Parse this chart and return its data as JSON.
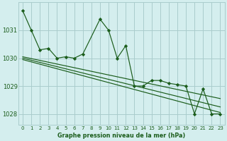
{
  "background_color": "#d4eeee",
  "grid_color": "#aacccc",
  "line_color": "#1a5c1a",
  "title": "Graphe pression niveau de la mer (hPa)",
  "xlim": [
    -0.5,
    23.5
  ],
  "ylim": [
    1027.6,
    1032.0
  ],
  "yticks": [
    1028,
    1029,
    1030,
    1031
  ],
  "xticks": [
    0,
    1,
    2,
    3,
    4,
    5,
    6,
    7,
    8,
    9,
    10,
    11,
    12,
    13,
    14,
    15,
    16,
    17,
    18,
    19,
    20,
    21,
    22,
    23
  ],
  "main_x": [
    0,
    1,
    2,
    3,
    4,
    5,
    6,
    7,
    9,
    10,
    11,
    12,
    13,
    14,
    15,
    16,
    17,
    18,
    19,
    20,
    21,
    22,
    23
  ],
  "main_y": [
    1031.7,
    1031.0,
    1030.3,
    1030.35,
    1030.0,
    1030.05,
    1030.0,
    1030.15,
    1031.4,
    1031.0,
    1030.0,
    1030.45,
    1029.0,
    1029.0,
    1029.2,
    1029.2,
    1029.1,
    1029.05,
    1029.0,
    1028.0,
    1028.9,
    1028.0,
    1028.0
  ],
  "trend1_x": [
    0,
    23
  ],
  "trend1_y": [
    1030.05,
    1028.55
  ],
  "trend2_x": [
    0,
    23
  ],
  "trend2_y": [
    1030.0,
    1028.25
  ],
  "trend3_x": [
    0,
    23
  ],
  "trend3_y": [
    1029.95,
    1028.05
  ]
}
